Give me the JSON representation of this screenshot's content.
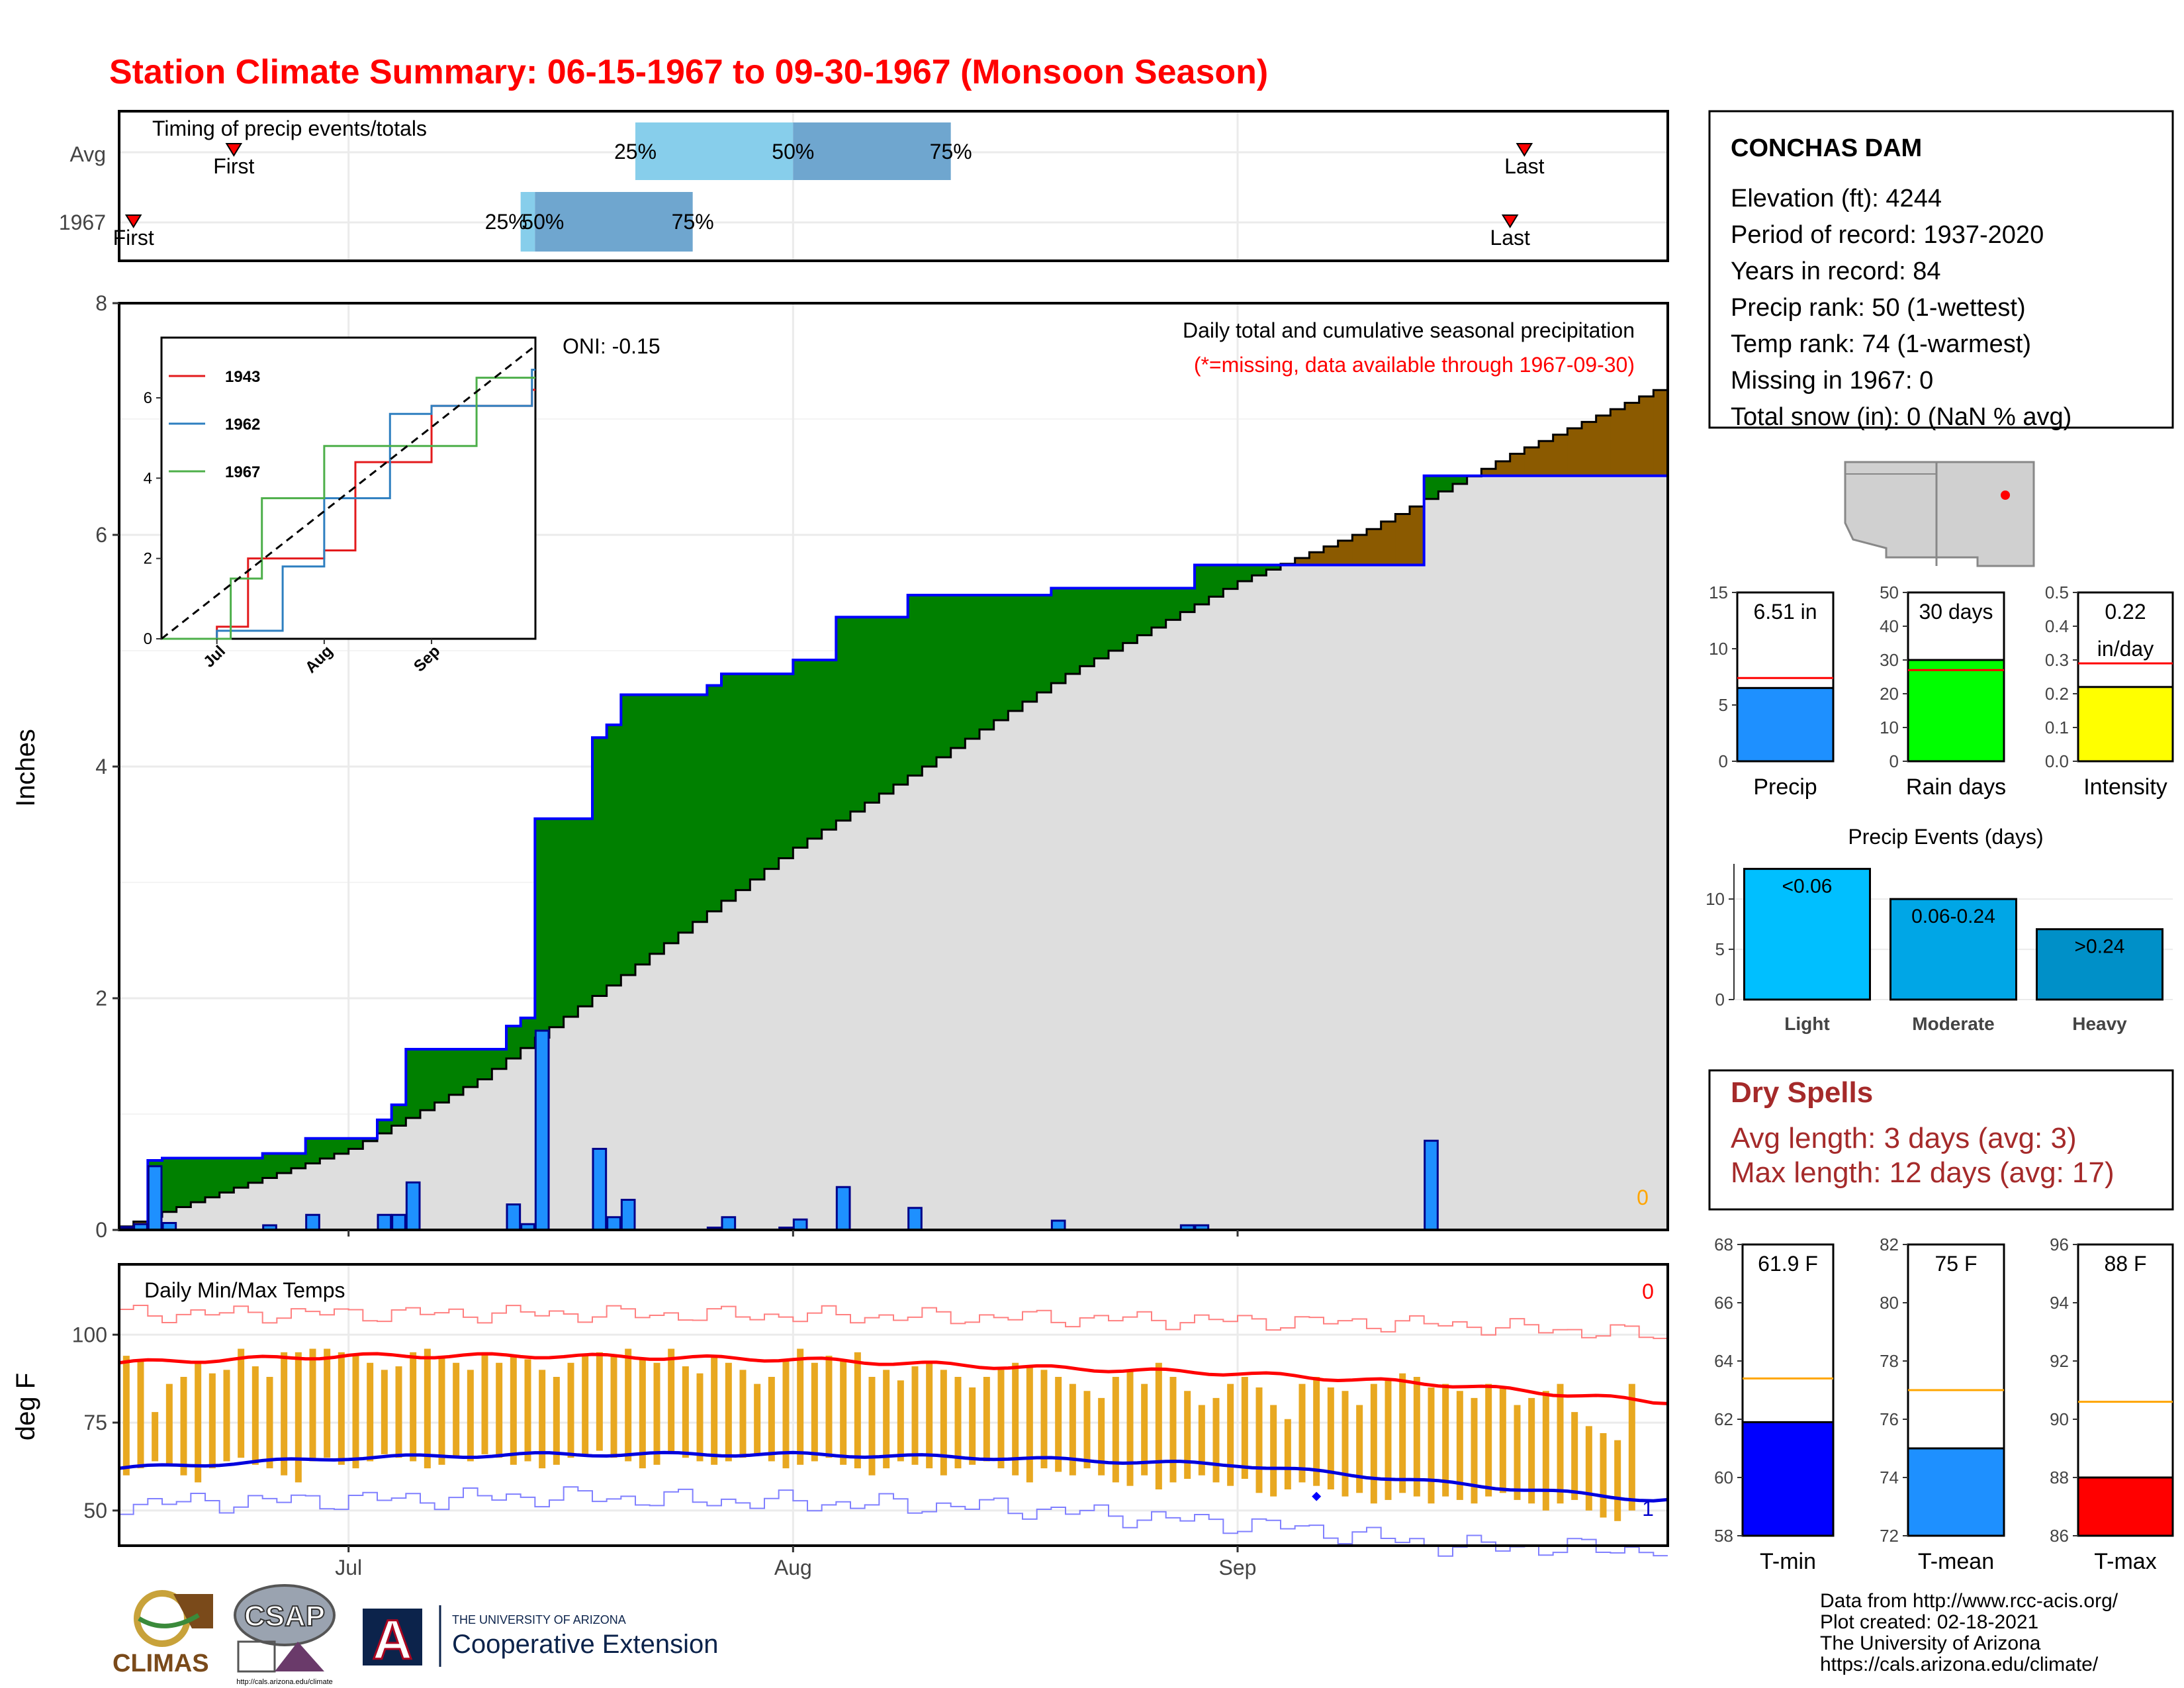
{
  "title": "Station Climate Summary: 06-15-1967 to 09-30-1967 (Monsoon Season)",
  "timing": {
    "label": "Timing of precip events/totals",
    "rows": [
      {
        "label": "Avg",
        "first_label": "First",
        "last_label": "Last",
        "first_date": "1967-06-23",
        "last_date": "1967-09-21",
        "p25": "1967-07-21",
        "p50": "1967-08-01",
        "p75": "1967-08-12",
        "p25_label": "25%",
        "p50_label": "50%",
        "p75_label": "75%"
      },
      {
        "label": "1967",
        "first_label": "First",
        "last_label": "Last",
        "first_date": "1967-06-16",
        "last_date": "1967-09-20",
        "p25": "1967-07-13",
        "p50": "1967-07-14",
        "p75": "1967-07-25",
        "p25_label": "25%",
        "p50_label": "50%",
        "p75_label": "75%"
      }
    ]
  },
  "station": {
    "name": "CONCHAS DAM",
    "lines": [
      "Elevation (ft): 4244",
      "Period of record: 1937-2020",
      "Years in record: 84",
      "Precip rank: 50 (1-wettest)",
      "Temp rank: 74 (1-warmest)",
      "Missing in 1967: 0",
      "Total snow (in): 0 (NaN % avg)"
    ]
  },
  "precip_panel": {
    "ylabel": "Inches",
    "header": "Daily total and cumulative seasonal precipitation",
    "subheader": "(*=missing, data available through 1967-09-30)",
    "oni": "ONI: -0.15",
    "missing_count": "0",
    "x_ticks": [
      "Jul",
      "Aug",
      "Sep"
    ],
    "y_ticks": [
      "0",
      "2",
      "4",
      "6",
      "8"
    ],
    "colors": {
      "daily_bar": "#1E90FF",
      "above_avg": "#008000",
      "below_avg": "#8B5A00",
      "avg_fill": "#DEDEDE"
    }
  },
  "temp_panel": {
    "ylabel": "deg F",
    "header": "Daily Min/Max Temps",
    "missing_max": "0",
    "missing_min": "1",
    "y_ticks": [
      "50",
      "75",
      "100"
    ],
    "x_ticks": [
      "Jul",
      "Aug",
      "Sep"
    ]
  },
  "inset": {
    "series": [
      {
        "name": "1943",
        "color": "#E31A1C"
      },
      {
        "name": "1962",
        "color": "#2E7FC0"
      },
      {
        "name": "1967",
        "color": "#4DAF4A"
      }
    ],
    "y_ticks": [
      "0",
      "2",
      "4",
      "6"
    ],
    "x_ticks": [
      "Jul",
      "Aug",
      "Sep"
    ]
  },
  "summary_bars": [
    {
      "title": "Precip",
      "label_line1": "6.51 in",
      "label_line2": "",
      "fill": "#1E90FF",
      "y_ticks": [
        "0",
        "5",
        "10",
        "15"
      ]
    },
    {
      "title": "Rain days",
      "label_line1": "30 days",
      "label_line2": "",
      "fill": "#00FF00",
      "y_ticks": [
        "0",
        "10",
        "20",
        "30",
        "40",
        "50"
      ]
    },
    {
      "title": "Intensity",
      "label_line1": "0.22",
      "label_line2": "in/day",
      "fill": "#FFFF00",
      "y_ticks": [
        "0.0",
        "0.1",
        "0.2",
        "0.3",
        "0.4",
        "0.5"
      ]
    }
  ],
  "events": {
    "title": "Precip Events (days)",
    "y_ticks": [
      "0",
      "5",
      "10"
    ],
    "bars": [
      {
        "cat": "Light",
        "label": "<0.06",
        "fill": "#00BFFF"
      },
      {
        "cat": "Moderate",
        "label": "0.06-0.24",
        "fill": "#00A6E6"
      },
      {
        "cat": "Heavy",
        "label": ">0.24",
        "fill": "#0090C8"
      }
    ]
  },
  "dry_spells": {
    "title": "Dry Spells",
    "line1": "Avg length: 3 days (avg: 3)",
    "line2": "Max length: 12 days (avg: 17)"
  },
  "temp_bars": [
    {
      "title": "T-min",
      "label": "61.9 F",
      "fill": "#0000FF",
      "y_ticks": [
        "58",
        "60",
        "62",
        "64",
        "66",
        "68"
      ]
    },
    {
      "title": "T-mean",
      "label": "75 F",
      "fill": "#1E90FF",
      "y_ticks": [
        "72",
        "74",
        "76",
        "78",
        "80",
        "82"
      ]
    },
    {
      "title": "T-max",
      "label": "88 F",
      "fill": "#FF0000",
      "y_ticks": [
        "86",
        "88",
        "90",
        "92",
        "94",
        "96"
      ]
    }
  ],
  "footer": {
    "line1": "Data from http://www.rcc-acis.org/",
    "line2": "Plot created: 02-18-2021",
    "line3": "The University of Arizona",
    "line4": "https://cals.arizona.edu/climate/"
  },
  "logos": {
    "climas": "CLIMAS",
    "csap": "CSAP",
    "csap_url": "http://cals.arizona.edu/climate",
    "ua_letter": "A",
    "ua_line1": "THE UNIVERSITY OF ARIZONA",
    "ua_line2": "Cooperative Extension"
  },
  "chart_data": [
    {
      "type": "area",
      "title": "Daily total and cumulative seasonal precipitation",
      "ylabel": "Inches",
      "xlim": [
        "1967-06-15",
        "1967-09-30"
      ],
      "ylim": [
        0,
        8
      ],
      "daily_precip": [
        {
          "date": "1967-06-15",
          "value": 0.02
        },
        {
          "date": "1967-06-16",
          "value": 0.05
        },
        {
          "date": "1967-06-17",
          "value": 0.55
        },
        {
          "date": "1967-06-18",
          "value": 0.06
        },
        {
          "date": "1967-06-25",
          "value": 0.04
        },
        {
          "date": "1967-06-28",
          "value": 0.13
        },
        {
          "date": "1967-07-03",
          "value": 0.13
        },
        {
          "date": "1967-07-04",
          "value": 0.13
        },
        {
          "date": "1967-07-05",
          "value": 0.41
        },
        {
          "date": "1967-07-12",
          "value": 0.22
        },
        {
          "date": "1967-07-13",
          "value": 0.05
        },
        {
          "date": "1967-07-14",
          "value": 1.72
        },
        {
          "date": "1967-07-18",
          "value": 0.7
        },
        {
          "date": "1967-07-19",
          "value": 0.11
        },
        {
          "date": "1967-07-20",
          "value": 0.26
        },
        {
          "date": "1967-07-26",
          "value": 0.02
        },
        {
          "date": "1967-07-27",
          "value": 0.11
        },
        {
          "date": "1967-07-31",
          "value": 0.02
        },
        {
          "date": "1967-08-01",
          "value": 0.09
        },
        {
          "date": "1967-08-04",
          "value": 0.37
        },
        {
          "date": "1967-08-09",
          "value": 0.19
        },
        {
          "date": "1967-08-19",
          "value": 0.08
        },
        {
          "date": "1967-08-28",
          "value": 0.04
        },
        {
          "date": "1967-08-29",
          "value": 0.04
        },
        {
          "date": "1967-09-14",
          "value": 0.77
        }
      ],
      "series": [
        {
          "name": "1967 cumulative",
          "x": [
            "1967-06-15",
            "1967-06-17",
            "1967-06-18",
            "1967-06-25",
            "1967-06-28",
            "1967-07-03",
            "1967-07-04",
            "1967-07-05",
            "1967-07-12",
            "1967-07-13",
            "1967-07-14",
            "1967-07-18",
            "1967-07-19",
            "1967-07-20",
            "1967-07-26",
            "1967-07-27",
            "1967-08-01",
            "1967-08-04",
            "1967-08-09",
            "1967-08-19",
            "1967-08-29",
            "1967-09-14",
            "1967-09-30"
          ],
          "values": [
            0.02,
            0.6,
            0.62,
            0.66,
            0.79,
            0.95,
            1.08,
            1.56,
            1.76,
            1.83,
            3.55,
            4.25,
            4.36,
            4.62,
            4.7,
            4.8,
            4.92,
            5.29,
            5.48,
            5.54,
            5.74,
            6.51,
            6.51
          ]
        },
        {
          "name": "Average cumulative",
          "x": [
            "1967-06-15",
            "1967-07-01",
            "1967-07-10",
            "1967-07-20",
            "1967-08-01",
            "1967-08-10",
            "1967-08-20",
            "1967-09-01",
            "1967-09-10",
            "1967-09-20",
            "1967-09-30"
          ],
          "values": [
            0.03,
            0.7,
            1.3,
            2.2,
            3.3,
            4.0,
            4.8,
            5.6,
            6.05,
            6.7,
            7.25
          ]
        }
      ]
    },
    {
      "type": "line",
      "title": "Daily Min/Max Temps",
      "ylabel": "deg F",
      "xlim": [
        "1967-06-15",
        "1967-09-30"
      ],
      "ylim": [
        40,
        120
      ],
      "series": [
        {
          "name": "Avg Tmax",
          "x": [
            "1967-06-15",
            "1967-07-01",
            "1967-07-15",
            "1967-08-01",
            "1967-08-15",
            "1967-09-01",
            "1967-09-15",
            "1967-09-30"
          ],
          "values": [
            92,
            94,
            94,
            93,
            91,
            89,
            86,
            81
          ]
        },
        {
          "name": "Avg Tmin",
          "x": [
            "1967-06-15",
            "1967-07-01",
            "1967-07-15",
            "1967-08-01",
            "1967-08-15",
            "1967-09-01",
            "1967-09-15",
            "1967-09-30"
          ],
          "values": [
            62,
            65,
            66,
            66,
            65,
            63,
            58,
            53
          ]
        },
        {
          "name": "Record Tmax",
          "x": [
            "1967-06-15",
            "1967-07-15",
            "1967-08-15",
            "1967-09-15",
            "1967-09-30"
          ],
          "values": [
            106,
            106,
            105,
            103,
            100
          ]
        },
        {
          "name": "Record Tmin",
          "x": [
            "1967-06-15",
            "1967-07-15",
            "1967-08-15",
            "1967-09-05",
            "1967-09-15",
            "1967-09-30"
          ],
          "values": [
            52,
            54,
            51,
            45,
            40,
            39
          ]
        },
        {
          "name": "1967 Tmax",
          "values": [
            94,
            93,
            78,
            86,
            88,
            92,
            89,
            90,
            96,
            91,
            88,
            95,
            95,
            96,
            96,
            95,
            94,
            92,
            90,
            91,
            95,
            96,
            94,
            92,
            90,
            95,
            92,
            94,
            93,
            90,
            88,
            92,
            94,
            95,
            94,
            96,
            93,
            92,
            96,
            91,
            89,
            94,
            92,
            90,
            86,
            88,
            93,
            96,
            92,
            94,
            93,
            95,
            88,
            90,
            87,
            91,
            92,
            90,
            88,
            85,
            88,
            90,
            92,
            91,
            90,
            88,
            86,
            84,
            82,
            88,
            90,
            86,
            92,
            88,
            84,
            80,
            82,
            86,
            88,
            85,
            80,
            76,
            86,
            88,
            85,
            84,
            80,
            86,
            87,
            89,
            88,
            85,
            86,
            84,
            82,
            86,
            85,
            80,
            82,
            84,
            86,
            78,
            74,
            72,
            70,
            86
          ]
        },
        {
          "name": "1967 Tmin",
          "values": [
            60,
            62,
            64,
            63,
            60,
            58,
            62,
            64,
            65,
            63,
            62,
            60,
            58,
            64,
            65,
            63,
            62,
            64,
            66,
            65,
            64,
            62,
            63,
            65,
            64,
            66,
            65,
            63,
            64,
            62,
            63,
            65,
            66,
            67,
            65,
            64,
            62,
            63,
            66,
            65,
            64,
            63,
            64,
            65,
            66,
            64,
            62,
            63,
            64,
            65,
            63,
            62,
            60,
            62,
            64,
            63,
            62,
            60,
            62,
            63,
            64,
            62,
            60,
            58,
            62,
            61,
            60,
            62,
            60,
            58,
            57,
            60,
            56,
            58,
            59,
            60,
            58,
            57,
            59,
            55,
            54,
            56,
            58,
            57,
            56,
            54,
            55,
            52,
            53,
            55,
            54,
            52,
            54,
            53,
            52,
            54,
            55,
            53,
            52,
            50,
            52,
            53,
            50,
            48,
            47,
            50
          ]
        }
      ]
    },
    {
      "type": "line",
      "title": "",
      "ylim": [
        0,
        7.5
      ],
      "series": [
        {
          "name": "1943",
          "x": [
            "1943-06-15",
            "1943-07-01",
            "1943-07-10",
            "1943-08-01",
            "1943-08-10",
            "1943-09-01",
            "1943-09-30"
          ],
          "values": [
            0,
            0.3,
            2.0,
            2.2,
            4.4,
            5.8,
            6.2
          ]
        },
        {
          "name": "1962",
          "x": [
            "1962-06-15",
            "1962-07-01",
            "1962-07-20",
            "1962-08-01",
            "1962-08-20",
            "1962-09-01",
            "1962-09-30"
          ],
          "values": [
            0,
            0.2,
            1.8,
            3.5,
            5.6,
            5.8,
            6.7
          ]
        },
        {
          "name": "1967",
          "x": [
            "1967-06-15",
            "1967-07-05",
            "1967-07-14",
            "1967-08-01",
            "1967-09-14",
            "1967-09-30"
          ],
          "values": [
            0,
            1.5,
            3.5,
            4.8,
            6.5,
            6.5
          ]
        },
        {
          "name": "Average",
          "x": [
            "1967-06-15",
            "1967-09-30"
          ],
          "values": [
            0,
            7.3
          ]
        }
      ]
    },
    {
      "type": "bar",
      "title": "Precip",
      "categories": [
        "Precip"
      ],
      "values": [
        6.51
      ],
      "reference": 7.4,
      "ylim": [
        0,
        15
      ]
    },
    {
      "type": "bar",
      "title": "Rain days",
      "categories": [
        "Rain days"
      ],
      "values": [
        30
      ],
      "reference": 27,
      "ylim": [
        0,
        50
      ]
    },
    {
      "type": "bar",
      "title": "Intensity",
      "categories": [
        "Intensity"
      ],
      "values": [
        0.22
      ],
      "reference": 0.29,
      "ylim": [
        0,
        0.5
      ]
    },
    {
      "type": "bar",
      "title": "Precip Events (days)",
      "categories": [
        "Light",
        "Moderate",
        "Heavy"
      ],
      "values": [
        13,
        10,
        7
      ],
      "ylim": [
        0,
        13.5
      ]
    },
    {
      "type": "bar",
      "title": "T-min",
      "categories": [
        "T-min"
      ],
      "values": [
        61.9
      ],
      "reference": 63.4,
      "ylim": [
        58,
        68
      ]
    },
    {
      "type": "bar",
      "title": "T-mean",
      "categories": [
        "T-mean"
      ],
      "values": [
        75
      ],
      "reference": 77,
      "ylim": [
        72,
        82
      ]
    },
    {
      "type": "bar",
      "title": "T-max",
      "categories": [
        "T-max"
      ],
      "values": [
        88
      ],
      "reference": 90.6,
      "ylim": [
        86,
        96
      ]
    }
  ]
}
